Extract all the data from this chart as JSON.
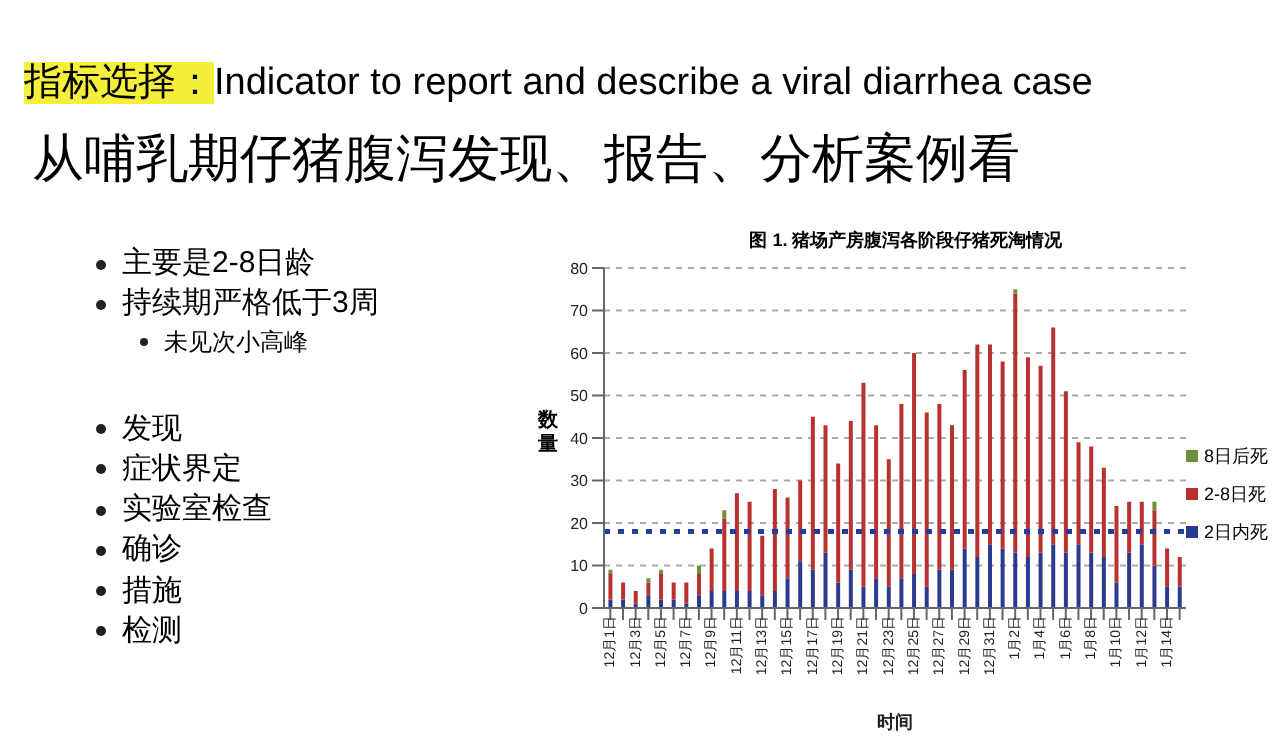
{
  "chart_data": {
    "type": "bar",
    "stacked": true,
    "title": "指标选择：Indicator to report and describe a viral diarrhea case",
    "subtitle": "从哺乳期仔猪腹泻发现、报告、分析案例看",
    "annotations": [
      "图 1. 猪场产房腹泻各阶段仔猪死淘情况",
      "主要是2-8日龄",
      "持续期严格低于3周",
      "未见次小高峰",
      "发现",
      "症状界定",
      "实验室检查",
      "确诊",
      "措施",
      "检测"
    ],
    "xlabel": "时间",
    "ylabel": "数量",
    "categories": [
      "12月1日",
      null,
      "12月3日",
      null,
      "12月5日",
      null,
      "12月7日",
      null,
      "12月9日",
      null,
      "12月11日",
      null,
      "12月13日",
      null,
      "12月15日",
      null,
      "12月17日",
      null,
      "12月19日",
      null,
      "12月21日",
      null,
      "12月23日",
      null,
      "12月25日",
      null,
      "12月27日",
      null,
      "12月29日",
      null,
      "12月31日",
      null,
      "1月2日",
      null,
      "1月4日",
      null,
      "1月6日",
      null,
      "1月8日",
      null,
      "1月10日",
      null,
      "1月12日",
      null,
      "1月14日",
      null
    ],
    "series": [
      {
        "name": "2日内死",
        "color": "#2b3a8f",
        "values": [
          2,
          2,
          1,
          3,
          2,
          2,
          1,
          3,
          4,
          4,
          4,
          4,
          3,
          4,
          7,
          11,
          9,
          13,
          6,
          9,
          5,
          7,
          5,
          7,
          8,
          5,
          9,
          9,
          14,
          12,
          15,
          14,
          13,
          12,
          13,
          15,
          13,
          15,
          13,
          12,
          6,
          13,
          15,
          10,
          5,
          5
        ]
      },
      {
        "name": "2-8日死",
        "color": "#b8312f",
        "values": [
          6,
          4,
          3,
          3,
          6,
          4,
          5,
          5,
          10,
          17,
          23,
          21,
          14,
          24,
          19,
          19,
          36,
          30,
          28,
          35,
          48,
          36,
          30,
          41,
          52,
          41,
          39,
          34,
          42,
          50,
          47,
          44,
          61,
          47,
          44,
          51,
          38,
          24,
          25,
          21,
          18,
          12,
          10,
          13,
          9,
          7
        ]
      },
      {
        "name": "8日后死",
        "color": "#6f8f3a",
        "values": [
          1,
          0,
          0,
          1,
          1,
          0,
          0,
          2,
          0,
          2,
          0,
          0,
          0,
          0,
          0,
          0,
          0,
          0,
          0,
          0,
          0,
          0,
          0,
          0,
          0,
          0,
          0,
          0,
          0,
          0,
          0,
          0,
          1,
          0,
          0,
          0,
          0,
          0,
          0,
          0,
          0,
          0,
          0,
          2,
          0,
          0
        ]
      }
    ],
    "ylim": [
      0,
      80
    ],
    "yticks": [
      0,
      10,
      20,
      30,
      40,
      50,
      60,
      70,
      80
    ],
    "grid": "y",
    "legend": "right",
    "ref_lines": [
      {
        "axis": "y",
        "value": 18,
        "color": "#1f3fa0",
        "line_style": "dotted"
      }
    ]
  }
}
